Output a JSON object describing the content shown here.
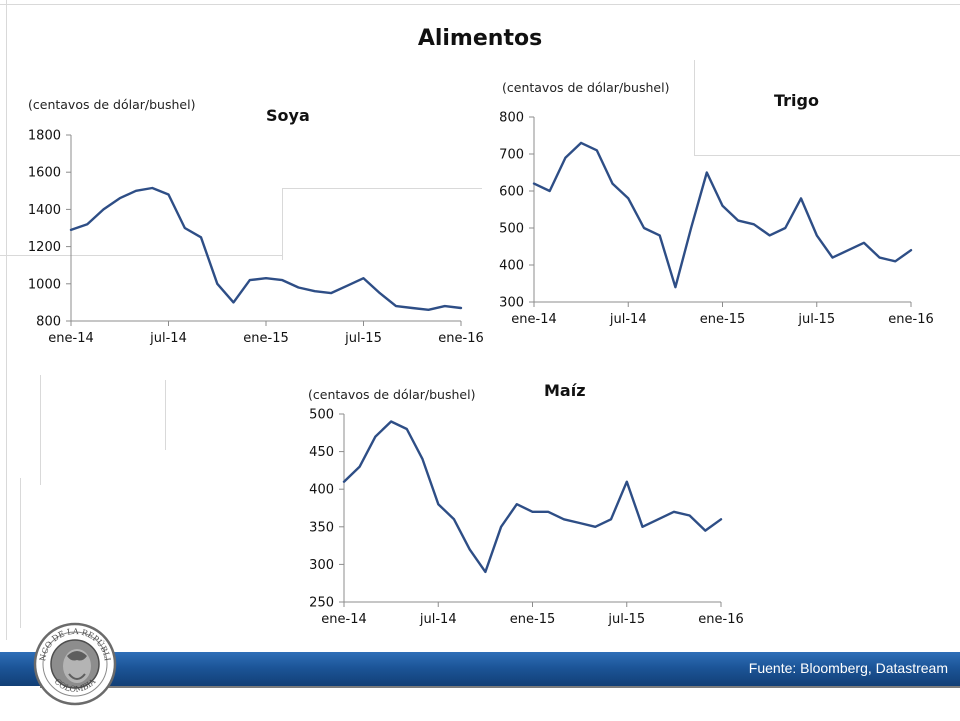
{
  "slide": {
    "title": "Alimentos",
    "source": "Fuente: Bloomberg, Datastream",
    "logo": {
      "top_text": "BANCO DE LA REPÚBLICA",
      "bottom_text": "COLOMBIA"
    },
    "series_color": "#2e4e86",
    "footer_color": "#1c5598"
  },
  "chart_data": [
    {
      "type": "line",
      "title": "Soya",
      "unit_label": "(centavos de dólar/bushel)",
      "xlabels": [
        "ene-14",
        "jul-14",
        "ene-15",
        "jul-15",
        "ene-16"
      ],
      "yticks": [
        800,
        1000,
        1200,
        1400,
        1600,
        1800
      ],
      "ylim": [
        800,
        1800
      ],
      "xlim": [
        "2014-01",
        "2016-01"
      ],
      "series": [
        {
          "x": [
            "2014-01",
            "2014-02",
            "2014-03",
            "2014-04",
            "2014-05",
            "2014-06",
            "2014-07",
            "2014-08",
            "2014-09",
            "2014-10",
            "2014-11",
            "2014-12",
            "2015-01",
            "2015-02",
            "2015-03",
            "2015-04",
            "2015-05",
            "2015-06",
            "2015-07",
            "2015-08",
            "2015-09",
            "2015-10",
            "2015-11",
            "2015-12",
            "2016-01"
          ],
          "values": [
            1290,
            1320,
            1400,
            1460,
            1500,
            1515,
            1480,
            1300,
            1250,
            1000,
            900,
            1020,
            1030,
            1020,
            980,
            960,
            950,
            990,
            1030,
            950,
            880,
            870,
            860,
            880,
            870
          ]
        }
      ]
    },
    {
      "type": "line",
      "title": "Trigo",
      "unit_label": "(centavos de dólar/bushel)",
      "xlabels": [
        "ene-14",
        "jul-14",
        "ene-15",
        "jul-15",
        "ene-16"
      ],
      "yticks": [
        300,
        400,
        500,
        600,
        700,
        800
      ],
      "ylim": [
        300,
        800
      ],
      "xlim": [
        "2014-01",
        "2016-01"
      ],
      "series": [
        {
          "x": [
            "2014-01",
            "2014-02",
            "2014-03",
            "2014-04",
            "2014-05",
            "2014-06",
            "2014-07",
            "2014-08",
            "2014-09",
            "2014-10",
            "2014-11",
            "2014-12",
            "2015-01",
            "2015-02",
            "2015-03",
            "2015-04",
            "2015-05",
            "2015-06",
            "2015-07",
            "2015-08",
            "2015-09",
            "2015-10",
            "2015-11",
            "2015-12",
            "2016-01"
          ],
          "values": [
            620,
            600,
            690,
            730,
            710,
            620,
            580,
            500,
            480,
            340,
            500,
            650,
            560,
            520,
            510,
            480,
            500,
            580,
            480,
            420,
            440,
            460,
            420,
            410,
            440
          ]
        }
      ]
    },
    {
      "type": "line",
      "title": "Maíz",
      "unit_label": "(centavos de dólar/bushel)",
      "xlabels": [
        "ene-14",
        "jul-14",
        "ene-15",
        "jul-15",
        "ene-16"
      ],
      "yticks": [
        250,
        300,
        350,
        400,
        450,
        500
      ],
      "ylim": [
        250,
        500
      ],
      "xlim": [
        "2014-01",
        "2016-01"
      ],
      "series": [
        {
          "x": [
            "2014-01",
            "2014-02",
            "2014-03",
            "2014-04",
            "2014-05",
            "2014-06",
            "2014-07",
            "2014-08",
            "2014-09",
            "2014-10",
            "2014-11",
            "2014-12",
            "2015-01",
            "2015-02",
            "2015-03",
            "2015-04",
            "2015-05",
            "2015-06",
            "2015-07",
            "2015-08",
            "2015-09",
            "2015-10",
            "2015-11",
            "2015-12",
            "2016-01"
          ],
          "values": [
            410,
            430,
            470,
            490,
            480,
            440,
            380,
            360,
            320,
            290,
            350,
            380,
            370,
            370,
            360,
            355,
            350,
            360,
            410,
            350,
            360,
            370,
            365,
            345,
            360
          ]
        }
      ]
    }
  ]
}
